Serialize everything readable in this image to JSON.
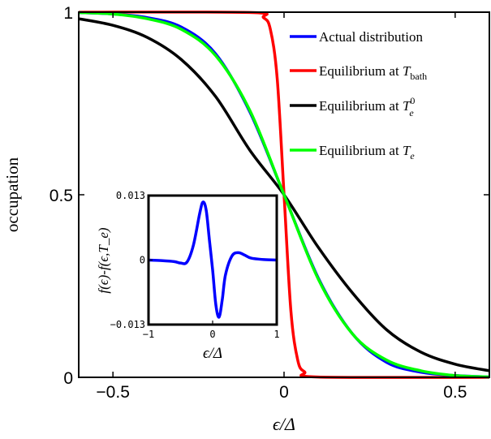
{
  "chart_data": [
    {
      "type": "line",
      "xlabel": "ϵ/Δ",
      "ylabel": "occupation",
      "xlim": [
        -0.6,
        0.6
      ],
      "ylim": [
        0,
        1
      ],
      "xticks": [
        -0.5,
        0,
        0.5
      ],
      "xtick_labels": [
        "−0.5",
        "0",
        "0.5"
      ],
      "yticks": [
        0,
        0.5,
        1
      ],
      "ytick_labels": [
        "0",
        "0.5",
        "1"
      ],
      "grid": false,
      "legend_position": "top-right",
      "legend": [
        {
          "text": "Actual distribution",
          "sub": "",
          "sup": ""
        },
        {
          "text": "Equilibrium at T",
          "sub": "bath",
          "sup": ""
        },
        {
          "text": "Equilibrium at T",
          "sub": "e",
          "sup": "0"
        },
        {
          "text": "Equilibrium at T",
          "sub": "e",
          "sup": ""
        }
      ],
      "series": [
        {
          "name": "Actual distribution",
          "color": "#0000ff",
          "x": [
            -0.6,
            -0.5,
            -0.4,
            -0.3,
            -0.2,
            -0.1,
            0,
            0.1,
            0.2,
            0.3,
            0.4,
            0.5,
            0.6
          ],
          "y": [
            0.999,
            0.995,
            0.985,
            0.959,
            0.886,
            0.727,
            0.5,
            0.272,
            0.119,
            0.041,
            0.014,
            0.005,
            0.001
          ]
        },
        {
          "name": "Equilibrium at T_bath",
          "color": "#ff0000",
          "x": [
            -0.6,
            -0.1,
            -0.06,
            -0.04,
            -0.02,
            0,
            0.02,
            0.04,
            0.06,
            0.1,
            0.6
          ],
          "y": [
            1.0,
            0.9991,
            0.985,
            0.953,
            0.818,
            0.5,
            0.182,
            0.047,
            0.015,
            0.0009,
            0.0
          ]
        },
        {
          "name": "Equilibrium at T_e^0",
          "color": "#000000",
          "x": [
            -0.6,
            -0.5,
            -0.4,
            -0.3,
            -0.2,
            -0.1,
            0,
            0.1,
            0.2,
            0.3,
            0.4,
            0.5,
            0.6
          ],
          "y": [
            0.982,
            0.964,
            0.931,
            0.87,
            0.769,
            0.622,
            0.5,
            0.356,
            0.231,
            0.13,
            0.069,
            0.036,
            0.018
          ]
        },
        {
          "name": "Equilibrium at T_e",
          "color": "#00ff00",
          "x": [
            -0.6,
            -0.5,
            -0.4,
            -0.3,
            -0.2,
            -0.1,
            0,
            0.1,
            0.2,
            0.3,
            0.4,
            0.5,
            0.6
          ],
          "y": [
            0.999,
            0.995,
            0.982,
            0.953,
            0.881,
            0.731,
            0.5,
            0.269,
            0.119,
            0.047,
            0.018,
            0.005,
            0.001
          ]
        }
      ]
    },
    {
      "type": "line",
      "inset": true,
      "xlabel": "ϵ/Δ",
      "ylabel": "f(ϵ)-f(ϵ,T_e)",
      "xlim": [
        -1,
        1
      ],
      "ylim": [
        -0.013,
        0.013
      ],
      "xticks": [
        -1,
        0,
        1
      ],
      "xtick_labels": [
        "−1",
        "0",
        "1"
      ],
      "yticks": [
        -0.013,
        0,
        0.013
      ],
      "ytick_labels": [
        "−0.013",
        "0",
        "0.013"
      ],
      "series": [
        {
          "name": "",
          "color": "#0000ff",
          "x": [
            -1.0,
            -0.8,
            -0.6,
            -0.5,
            -0.4,
            -0.3,
            -0.2,
            -0.15,
            -0.1,
            -0.05,
            0,
            0.05,
            0.1,
            0.15,
            0.2,
            0.3,
            0.4,
            0.5,
            0.6,
            0.8,
            1.0
          ],
          "y": [
            0.0,
            -0.0001,
            -0.0003,
            -0.0006,
            -0.0004,
            0.003,
            0.0095,
            0.0117,
            0.01,
            0.004,
            -0.002,
            -0.009,
            -0.0115,
            -0.008,
            -0.003,
            0.0008,
            0.0015,
            0.001,
            0.0004,
            0.0001,
            0.0
          ]
        }
      ]
    }
  ]
}
